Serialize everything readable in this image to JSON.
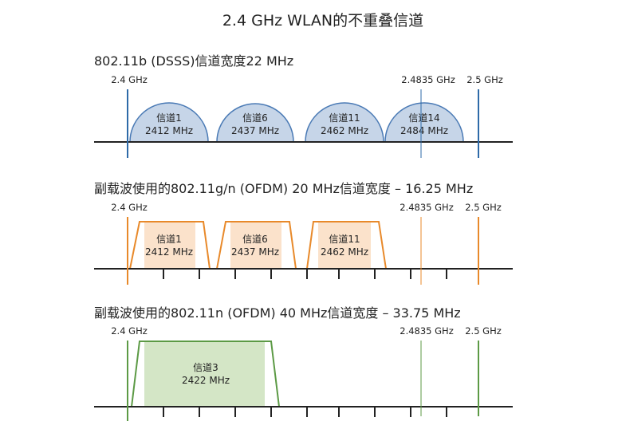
{
  "title": "2.4 GHz WLAN的不重叠信道",
  "panels": [
    {
      "heading": "802.11b (DSSS)信道宽度22 MHz",
      "markers": [
        "2.4 GHz",
        "2.4835 GHz",
        "2.5 GHz"
      ],
      "channels": [
        {
          "name": "信道1",
          "freq": "2412 MHz"
        },
        {
          "name": "信道6",
          "freq": "2437 MHz"
        },
        {
          "name": "信道11",
          "freq": "2462 MHz"
        },
        {
          "name": "信道14",
          "freq": "2484 MHz"
        }
      ]
    },
    {
      "heading": "副载波使用的802.11g/n (OFDM) 20 MHz信道宽度 – 16.25 MHz",
      "markers": [
        "2.4 GHz",
        "2.4835 GHz",
        "2.5 GHz"
      ],
      "channels": [
        {
          "name": "信道1",
          "freq": "2412 MHz"
        },
        {
          "name": "信道6",
          "freq": "2437 MHz"
        },
        {
          "name": "信道11",
          "freq": "2462 MHz"
        }
      ]
    },
    {
      "heading": "副载波使用的802.11n (OFDM) 40 MHz信道宽度 – 33.75 MHz",
      "markers": [
        "2.4 GHz",
        "2.4835 GHz",
        "2.5 GHz"
      ],
      "channels": [
        {
          "name": "信道3",
          "freq": "2422 MHz"
        }
      ]
    }
  ]
}
